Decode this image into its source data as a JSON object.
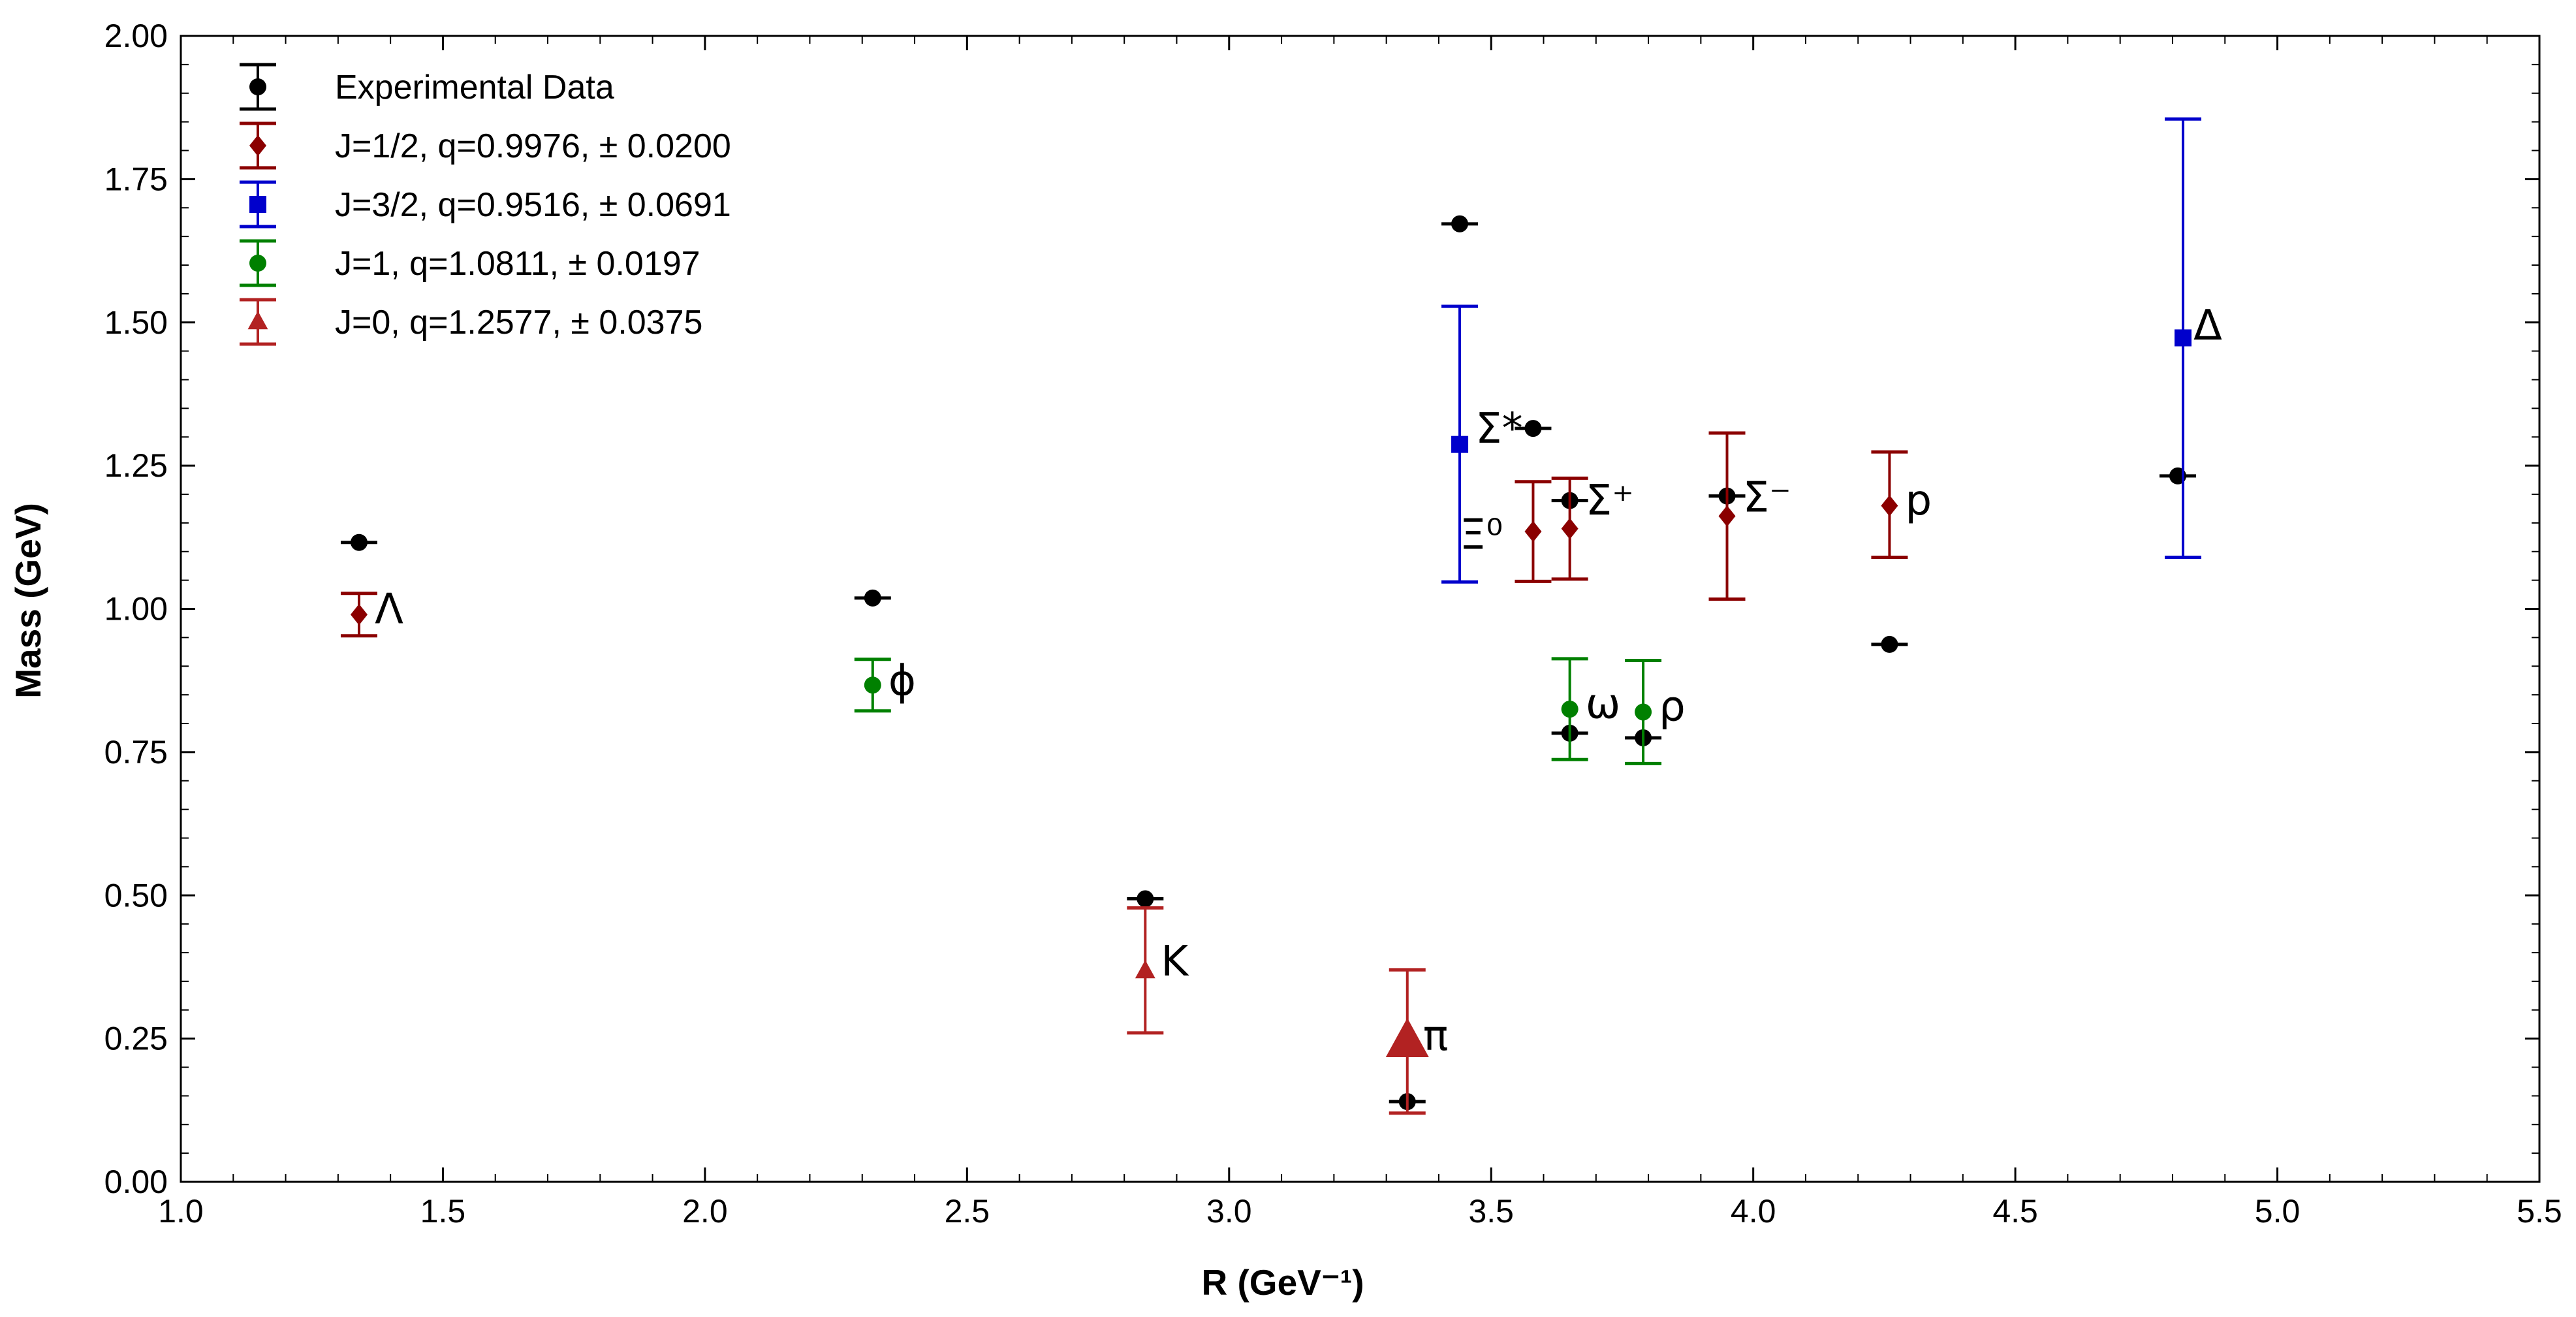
{
  "chart_data": {
    "type": "scatter",
    "title": "",
    "xlabel": "R (GeV⁻¹)",
    "ylabel": "Mass (GeV)",
    "xlim": [
      1.0,
      5.5
    ],
    "ylim": [
      0.0,
      2.0
    ],
    "xticks": [
      "1.0",
      "1.5",
      "2.0",
      "2.5",
      "3.0",
      "3.5",
      "4.0",
      "4.5",
      "5.0",
      "5.5"
    ],
    "yticks": [
      "0.00",
      "0.25",
      "0.50",
      "0.75",
      "1.00",
      "1.25",
      "1.50",
      "1.75",
      "2.00"
    ],
    "legend_position": "top-left",
    "series": [
      {
        "name": "Experimental Data",
        "marker": "circle",
        "color": "#000000",
        "points": [
          {
            "x": 1.34,
            "y": 1.116
          },
          {
            "x": 2.32,
            "y": 1.019
          },
          {
            "x": 2.84,
            "y": 0.494
          },
          {
            "x": 3.34,
            "y": 0.14
          },
          {
            "x": 3.44,
            "y": 1.672
          },
          {
            "x": 3.58,
            "y": 1.315
          },
          {
            "x": 3.65,
            "y": 1.189
          },
          {
            "x": 3.65,
            "y": 0.783
          },
          {
            "x": 3.79,
            "y": 0.775
          },
          {
            "x": 3.95,
            "y": 1.197
          },
          {
            "x": 4.26,
            "y": 0.938
          },
          {
            "x": 4.81,
            "y": 1.232
          }
        ]
      },
      {
        "name": "J=1/2, q=0.9976, ± 0.0200",
        "marker": "diamond",
        "color": "#8b0000",
        "points": [
          {
            "x": 1.34,
            "y": 0.99,
            "lo": 0.953,
            "hi": 1.027
          },
          {
            "x": 3.58,
            "y": 1.135,
            "lo": 1.048,
            "hi": 1.222
          },
          {
            "x": 3.65,
            "y": 1.14,
            "lo": 1.052,
            "hi": 1.228
          },
          {
            "x": 3.95,
            "y": 1.162,
            "lo": 1.017,
            "hi": 1.307
          },
          {
            "x": 4.26,
            "y": 1.18,
            "lo": 1.09,
            "hi": 1.274
          }
        ]
      },
      {
        "name": "J=3/2, q=0.9516, ± 0.0691",
        "marker": "square",
        "color": "#0000cc",
        "points": [
          {
            "x": 3.44,
            "y": 1.287,
            "lo": 1.047,
            "hi": 1.528
          },
          {
            "x": 4.82,
            "y": 1.473,
            "lo": 1.09,
            "hi": 1.855
          }
        ]
      },
      {
        "name": "J=1, q=1.0811, ± 0.0197",
        "marker": "circle",
        "color": "#008000",
        "points": [
          {
            "x": 2.32,
            "y": 0.867,
            "lo": 0.822,
            "hi": 0.912
          },
          {
            "x": 3.65,
            "y": 0.825,
            "lo": 0.737,
            "hi": 0.913
          },
          {
            "x": 3.79,
            "y": 0.82,
            "lo": 0.73,
            "hi": 0.91
          }
        ]
      },
      {
        "name": "J=0, q=1.2577, ± 0.0375",
        "marker": "triangle",
        "color": "#b22222",
        "points": [
          {
            "x": 2.84,
            "y": 0.368,
            "lo": 0.26,
            "hi": 0.478,
            "size": "small"
          },
          {
            "x": 3.34,
            "y": 0.245,
            "lo": 0.12,
            "hi": 0.37,
            "size": "large"
          }
        ]
      }
    ],
    "annotations": [
      {
        "text": "Λ",
        "x": 1.37,
        "y": 1.0
      },
      {
        "text": "ϕ",
        "x": 2.35,
        "y": 0.875
      },
      {
        "text": "K",
        "x": 2.87,
        "y": 0.385
      },
      {
        "text": "π",
        "x": 3.37,
        "y": 0.255
      },
      {
        "text": "Σ*",
        "x": 3.47,
        "y": 1.315
      },
      {
        "text": "Ξ⁰",
        "x": 3.44,
        "y": 1.13
      },
      {
        "text": "Σ⁺",
        "x": 3.68,
        "y": 1.19
      },
      {
        "text": "ω",
        "x": 3.68,
        "y": 0.835
      },
      {
        "text": "ρ",
        "x": 3.82,
        "y": 0.83
      },
      {
        "text": "Σ⁻",
        "x": 3.98,
        "y": 1.195
      },
      {
        "text": "p",
        "x": 4.29,
        "y": 1.19
      },
      {
        "text": "Δ",
        "x": 4.84,
        "y": 1.495
      }
    ]
  }
}
